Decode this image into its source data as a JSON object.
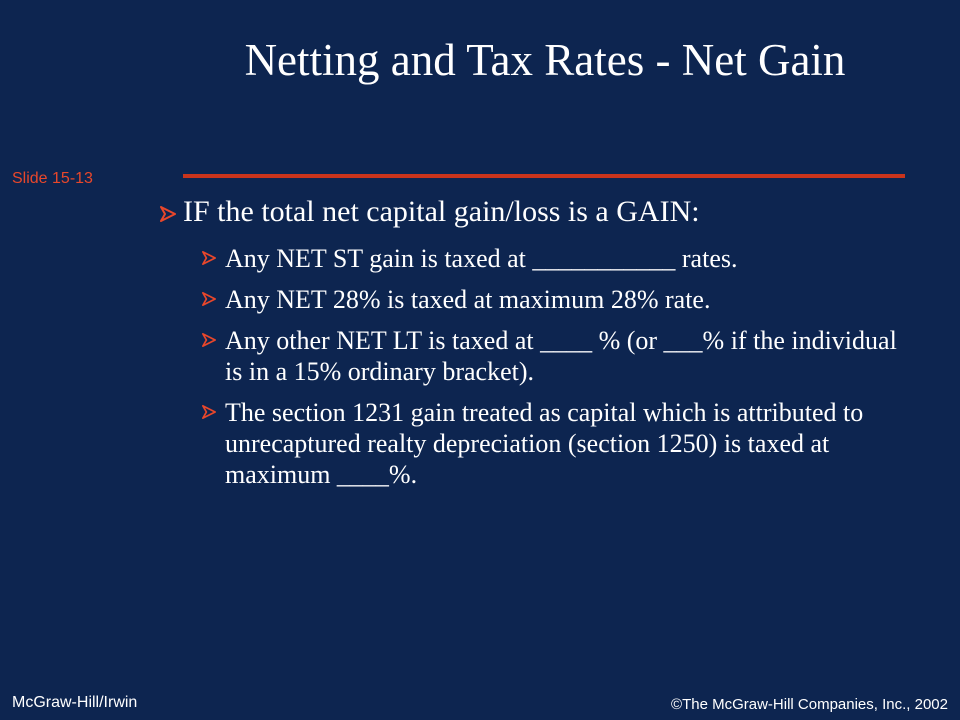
{
  "slide": {
    "title": "Netting and Tax Rates - Net Gain",
    "slide_number": "Slide 15-13",
    "accent_color": "#c9341c",
    "background_color": "#0d2550",
    "bullet_icon": "arrow-bullet-icon",
    "main_bullet": "IF the total net capital gain/loss is a GAIN:",
    "sub_bullets": [
      "Any NET ST gain is taxed at ___________ rates.",
      "Any NET 28% is taxed at maximum 28% rate.",
      "Any other NET LT is taxed at ____ % (or ___% if the individual is in a 15% ordinary bracket).",
      "The section 1231 gain treated as capital which is attributed to unrecaptured realty depreciation (section 1250) is taxed at maximum ____%."
    ]
  },
  "footer": {
    "publisher": "McGraw-Hill/Irwin",
    "copyright": "©The McGraw-Hill Companies, Inc., 2002"
  }
}
